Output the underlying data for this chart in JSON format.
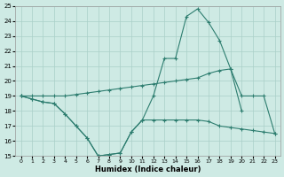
{
  "xlabel": "Humidex (Indice chaleur)",
  "x": [
    0,
    1,
    2,
    3,
    4,
    5,
    6,
    7,
    8,
    9,
    10,
    11,
    12,
    13,
    14,
    15,
    16,
    17,
    18,
    19,
    20,
    21,
    22,
    23
  ],
  "line_avg": [
    19.0,
    19.0,
    19.0,
    19.0,
    19.0,
    19.1,
    19.2,
    19.3,
    19.4,
    19.5,
    19.6,
    19.7,
    19.8,
    19.9,
    20.0,
    20.1,
    20.2,
    20.5,
    20.7,
    20.8,
    19.0,
    19.0,
    19.0,
    16.5
  ],
  "line_peak": [
    19.0,
    18.8,
    18.6,
    18.5,
    17.8,
    17.0,
    16.2,
    15.0,
    15.1,
    15.2,
    16.6,
    17.4,
    19.0,
    21.5,
    21.5,
    24.3,
    24.8,
    23.9,
    22.7,
    20.8,
    18.0,
    null,
    null,
    null
  ],
  "line_low": [
    19.0,
    18.8,
    18.6,
    18.5,
    17.8,
    17.0,
    16.2,
    15.0,
    15.1,
    15.2,
    16.6,
    17.4,
    17.4,
    17.4,
    17.4,
    17.4,
    17.4,
    17.3,
    17.0,
    16.9,
    16.8,
    16.7,
    16.6,
    16.5
  ],
  "ylim": [
    15,
    25
  ],
  "xlim": [
    -0.5,
    23.5
  ],
  "yticks": [
    15,
    16,
    17,
    18,
    19,
    20,
    21,
    22,
    23,
    24,
    25
  ],
  "xticks": [
    0,
    1,
    2,
    3,
    4,
    5,
    6,
    7,
    8,
    9,
    10,
    11,
    12,
    13,
    14,
    15,
    16,
    17,
    18,
    19,
    20,
    21,
    22,
    23
  ],
  "line_color": "#2d7d6f",
  "bg_color": "#ceeae4",
  "grid_color": "#aacfc8"
}
